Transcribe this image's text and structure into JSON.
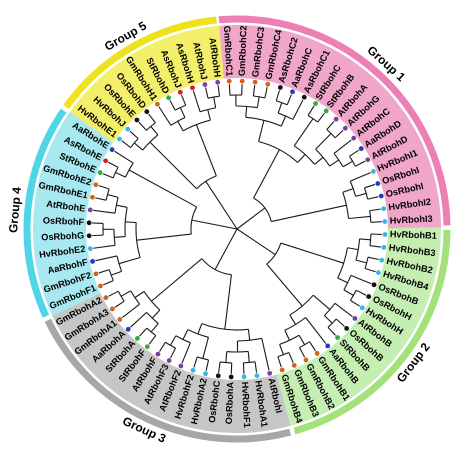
{
  "groups": [
    {
      "label": "Group 1",
      "color": "#f0a6c8",
      "ring": "#ec7fb4"
    },
    {
      "label": "Group 5",
      "color": "#f4ef6a",
      "ring": "#eee21d"
    },
    {
      "label": "Group 4",
      "color": "#a8e8f0",
      "ring": "#4fd6e6"
    },
    {
      "label": "Group 3",
      "color": "#c6c6c6",
      "ring": "#a7a7a7"
    },
    {
      "label": "Group 2",
      "color": "#c4eeb2",
      "ring": "#a3e27b"
    }
  ],
  "dot_colors": {
    "blue": "#1f3dbf",
    "cyan": "#36b7e8",
    "orange": "#d0651b",
    "black": "#111111",
    "purple": "#7a3ea8",
    "red": "#d42020",
    "green": "#2fae3a"
  },
  "leaves": [
    {
      "label": "GmRbohC1",
      "group": 0,
      "dot": "orange"
    },
    {
      "label": "GmRbohC2",
      "group": 0,
      "dot": "orange"
    },
    {
      "label": "GmRbohC3",
      "group": 0,
      "dot": "orange"
    },
    {
      "label": "GmRbohC4",
      "group": 0,
      "dot": "orange"
    },
    {
      "label": "AsRbohC2",
      "group": 0,
      "dot": "black"
    },
    {
      "label": "AaRbohC",
      "group": 0,
      "dot": "blue"
    },
    {
      "label": "AsRbohC1",
      "group": 0,
      "dot": "black"
    },
    {
      "label": "StRbohC",
      "group": 0,
      "dot": "green"
    },
    {
      "label": "StRbohB",
      "group": 0,
      "dot": "green"
    },
    {
      "label": "AtRbohA",
      "group": 0,
      "dot": "purple"
    },
    {
      "label": "AtRbohG",
      "group": 0,
      "dot": "purple"
    },
    {
      "label": "AtRbohC",
      "group": 0,
      "dot": "purple"
    },
    {
      "label": "AaRbohD",
      "group": 0,
      "dot": "blue"
    },
    {
      "label": "AtRbohD",
      "group": 0,
      "dot": "purple"
    },
    {
      "label": "HvRbohI1",
      "group": 0,
      "dot": "cyan"
    },
    {
      "label": "OsRbohI",
      "group": 0,
      "dot": "blue"
    },
    {
      "label": "OsRbohI",
      "group": 0,
      "dot": "blue"
    },
    {
      "label": "HvRbohI2",
      "group": 0,
      "dot": "cyan"
    },
    {
      "label": "HvRbohI3",
      "group": 0,
      "dot": "cyan"
    },
    {
      "label": "HvRbohB1",
      "group": 4,
      "dot": "cyan"
    },
    {
      "label": "HvRbohB3",
      "group": 4,
      "dot": "cyan"
    },
    {
      "label": "HvRbohB2",
      "group": 4,
      "dot": "cyan"
    },
    {
      "label": "HvRbohB4",
      "group": 4,
      "dot": "cyan"
    },
    {
      "label": "OsRbohB",
      "group": 4,
      "dot": "black"
    },
    {
      "label": "OsRbohH",
      "group": 4,
      "dot": "black"
    },
    {
      "label": "HvRbohH",
      "group": 4,
      "dot": "cyan"
    },
    {
      "label": "AtRbohB",
      "group": 4,
      "dot": "purple"
    },
    {
      "label": "OsRbohB",
      "group": 4,
      "dot": "black"
    },
    {
      "label": "StRbohB",
      "group": 4,
      "dot": "green"
    },
    {
      "label": "AaRbohB",
      "group": 4,
      "dot": "blue"
    },
    {
      "label": "GmRbohB1",
      "group": 4,
      "dot": "orange"
    },
    {
      "label": "GmRbohB2",
      "group": 4,
      "dot": "orange"
    },
    {
      "label": "GmRbohB3",
      "group": 4,
      "dot": "orange"
    },
    {
      "label": "GmRbohB4",
      "group": 4,
      "dot": "orange"
    },
    {
      "label": "AtRbohI",
      "group": 3,
      "dot": "purple"
    },
    {
      "label": "HvRbohA1",
      "group": 3,
      "dot": "cyan"
    },
    {
      "label": "HvRbohF1",
      "group": 3,
      "dot": "cyan"
    },
    {
      "label": "OsRbohA",
      "group": 3,
      "dot": "black"
    },
    {
      "label": "OsRbohC",
      "group": 3,
      "dot": "black"
    },
    {
      "label": "HvRbohA2",
      "group": 3,
      "dot": "cyan"
    },
    {
      "label": "HvRbohF2",
      "group": 3,
      "dot": "cyan"
    },
    {
      "label": "AtRbohF2",
      "group": 3,
      "dot": "purple"
    },
    {
      "label": "AtRbohF3",
      "group": 3,
      "dot": "purple"
    },
    {
      "label": "AtRbohF",
      "group": 3,
      "dot": "purple"
    },
    {
      "label": "StRbohF",
      "group": 3,
      "dot": "green"
    },
    {
      "label": "StRbohA",
      "group": 3,
      "dot": "green"
    },
    {
      "label": "AaRbohA",
      "group": 3,
      "dot": "blue"
    },
    {
      "label": "GmRbohA1",
      "group": 3,
      "dot": "orange"
    },
    {
      "label": "GmRbohA3",
      "group": 3,
      "dot": "orange"
    },
    {
      "label": "GmRbohA2",
      "group": 3,
      "dot": "orange"
    },
    {
      "label": "GmRbohF1",
      "group": 2,
      "dot": "orange"
    },
    {
      "label": "GmRbohF2",
      "group": 2,
      "dot": "orange"
    },
    {
      "label": "AaRbohF",
      "group": 2,
      "dot": "blue"
    },
    {
      "label": "HvRbohE2",
      "group": 2,
      "dot": "cyan"
    },
    {
      "label": "OsRbohG",
      "group": 2,
      "dot": "black"
    },
    {
      "label": "OsRbohF",
      "group": 2,
      "dot": "black"
    },
    {
      "label": "AtRbohE",
      "group": 2,
      "dot": "purple"
    },
    {
      "label": "GmRbohE1",
      "group": 2,
      "dot": "orange"
    },
    {
      "label": "GmRbohE2",
      "group": 2,
      "dot": "orange"
    },
    {
      "label": "StRbohE",
      "group": 2,
      "dot": "green"
    },
    {
      "label": "AsRbohE",
      "group": 2,
      "dot": "red"
    },
    {
      "label": "AaRbohE",
      "group": 2,
      "dot": "blue"
    },
    {
      "label": "HvRbohE1",
      "group": 1,
      "dot": "cyan"
    },
    {
      "label": "HvRbohJ",
      "group": 1,
      "dot": "cyan"
    },
    {
      "label": "OsRbohE",
      "group": 1,
      "dot": "black"
    },
    {
      "label": "OsRbohD",
      "group": 1,
      "dot": "black"
    },
    {
      "label": "GmRbohH1",
      "group": 1,
      "dot": "orange"
    },
    {
      "label": "StRbohD",
      "group": 1,
      "dot": "green"
    },
    {
      "label": "AsRbohJ",
      "group": 1,
      "dot": "red"
    },
    {
      "label": "AsRbohH",
      "group": 1,
      "dot": "red"
    },
    {
      "label": "AtRbohJ",
      "group": 1,
      "dot": "purple"
    },
    {
      "label": "AtRbohH",
      "group": 1,
      "dot": "purple"
    }
  ]
}
